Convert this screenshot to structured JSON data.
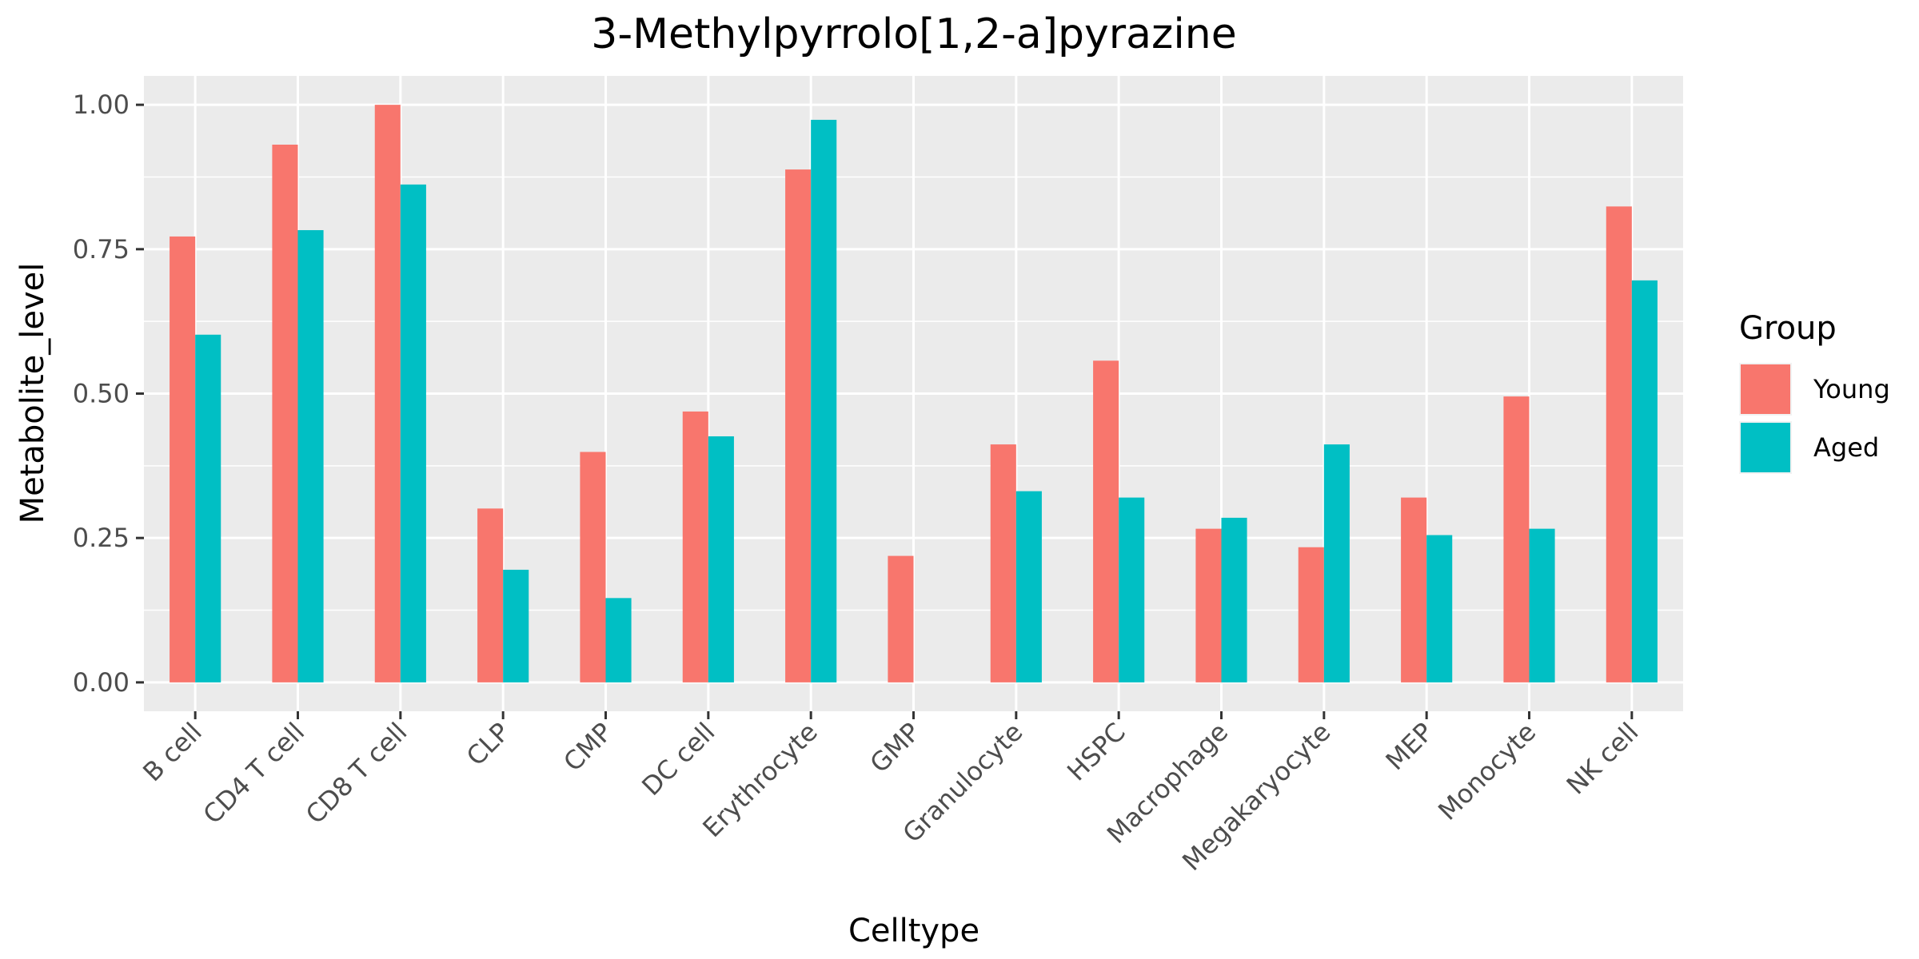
{
  "chart_data": {
    "type": "bar",
    "title": "3-Methylpyrrolo[1,2-a]pyrazine",
    "xlabel": "Celltype",
    "ylabel": "Metabolite_level",
    "ylim": [
      -0.05,
      1.05
    ],
    "yticks": [
      0.0,
      0.25,
      0.5,
      0.75,
      1.0
    ],
    "ytick_labels": [
      "0.00",
      "0.25",
      "0.50",
      "0.75",
      "1.00"
    ],
    "grid": true,
    "legend": {
      "title": "Group",
      "position": "right"
    },
    "categories": [
      "B cell",
      "CD4 T cell",
      "CD8 T cell",
      "CLP",
      "CMP",
      "DC cell",
      "Erythrocyte",
      "GMP",
      "Granulocyte",
      "HSPC",
      "Macrophage",
      "Megakaryocyte",
      "MEP",
      "Monocyte",
      "NK cell"
    ],
    "series": [
      {
        "name": "Young",
        "color": "#F8766D",
        "values": [
          0.772,
          0.931,
          1.0,
          0.301,
          0.399,
          0.469,
          0.888,
          0.219,
          0.412,
          0.557,
          0.266,
          0.234,
          0.32,
          0.495,
          0.824
        ]
      },
      {
        "name": "Aged",
        "color": "#00BFC4",
        "values": [
          0.602,
          0.783,
          0.862,
          0.195,
          0.146,
          0.426,
          0.974,
          0.0,
          0.331,
          0.32,
          0.285,
          0.412,
          0.255,
          0.266,
          0.696
        ]
      }
    ]
  }
}
